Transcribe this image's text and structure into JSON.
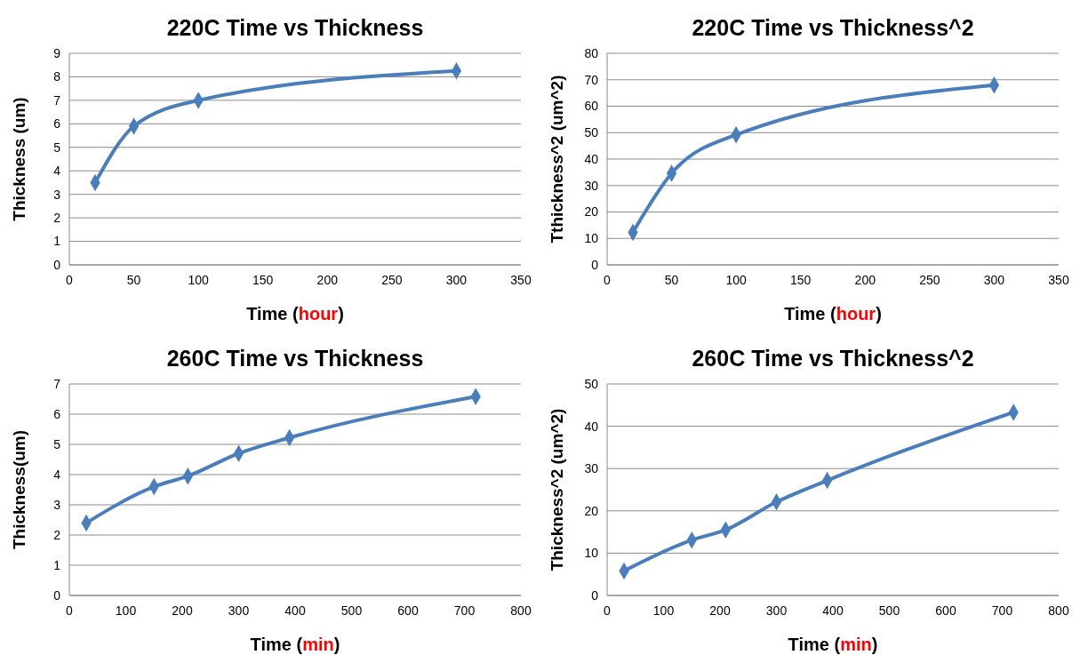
{
  "chart_data": [
    {
      "type": "line",
      "title": "220C Time vs Thickness",
      "xlabel": "Time (hour)",
      "ylabel": "Thickness (um)",
      "x": [
        20,
        50,
        100,
        300
      ],
      "series": [
        {
          "color": "#4a7ebb",
          "values": [
            3.5,
            5.9,
            7.0,
            8.25
          ]
        }
      ],
      "xlim": [
        0,
        350
      ],
      "xticks": [
        0,
        50,
        100,
        150,
        200,
        250,
        300,
        350
      ],
      "ylim": [
        0,
        9
      ],
      "yticks": [
        0,
        1,
        2,
        3,
        4,
        5,
        6,
        7,
        8,
        9
      ],
      "grid": "y",
      "marker": "diamond",
      "line_style": "solid"
    },
    {
      "type": "line",
      "title": "220C Time vs Thickness^2",
      "xlabel": "Time (hour)",
      "ylabel": "Tthickness^2 (um^2)",
      "x": [
        20,
        50,
        100,
        300
      ],
      "series": [
        {
          "color": "#4a7ebb",
          "values": [
            12.3,
            34.6,
            49.2,
            68
          ]
        }
      ],
      "xlim": [
        0,
        350
      ],
      "xticks": [
        0,
        50,
        100,
        150,
        200,
        250,
        300,
        350
      ],
      "ylim": [
        0,
        80
      ],
      "yticks": [
        0,
        10,
        20,
        30,
        40,
        50,
        60,
        70,
        80
      ],
      "grid": "y",
      "marker": "diamond",
      "line_style": "solid"
    },
    {
      "type": "line",
      "title": "260C Time vs Thickness",
      "xlabel": "Time (min)",
      "ylabel": "Thickness(um)",
      "x": [
        30,
        150,
        210,
        300,
        390,
        720
      ],
      "series": [
        {
          "color": "#4a7ebb",
          "values": [
            2.4,
            3.6,
            3.95,
            4.7,
            5.22,
            6.58
          ]
        }
      ],
      "xlim": [
        0,
        800
      ],
      "xticks": [
        0,
        100,
        200,
        300,
        400,
        500,
        600,
        700,
        800
      ],
      "ylim": [
        0,
        7
      ],
      "yticks": [
        0,
        1,
        2,
        3,
        4,
        5,
        6,
        7
      ],
      "grid": "y",
      "marker": "diamond",
      "line_style": "solid"
    },
    {
      "type": "line",
      "title": "260C Time vs Thickness^2",
      "xlabel": "Time (min)",
      "ylabel": "Thickness^2 (um^2)",
      "x": [
        30,
        150,
        210,
        300,
        390,
        720
      ],
      "series": [
        {
          "color": "#4a7ebb",
          "values": [
            5.8,
            13.1,
            15.5,
            22.1,
            27.2,
            43.3
          ]
        }
      ],
      "xlim": [
        0,
        800
      ],
      "xticks": [
        0,
        100,
        200,
        300,
        400,
        500,
        600,
        700,
        800
      ],
      "ylim": [
        0,
        50
      ],
      "yticks": [
        0,
        10,
        20,
        30,
        40,
        50
      ],
      "grid": "y",
      "marker": "diamond",
      "line_style": "solid"
    }
  ]
}
